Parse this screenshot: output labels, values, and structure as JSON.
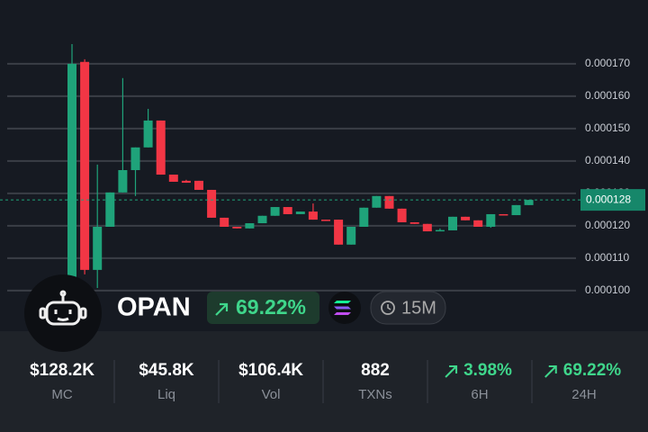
{
  "chart_data": {
    "type": "candlestick",
    "open": [
      0.0001022,
      0.0001706,
      0.0001064,
      0.0001197,
      0.0001303,
      0.0001372,
      0.0001442,
      0.0001525,
      0.0001358,
      0.0001339,
      0.0001339,
      0.0001311,
      0.0001225,
      0.0001197,
      0.0001192,
      0.0001208,
      0.0001231,
      0.0001258,
      0.0001236,
      0.0001244,
      0.0001219,
      0.0001219,
      0.0001142,
      0.0001197,
      0.0001256,
      0.0001292,
      0.0001253,
      0.0001211,
      0.0001206,
      0.0001186,
      0.0001186,
      0.0001228,
      0.0001217,
      0.0001197,
      0.0001236,
      0.0001233,
      0.0001264
    ],
    "high": [
      0.0001761,
      0.0001714,
      0.0001389,
      0.0001303,
      0.0001656,
      0.0001442,
      0.0001561,
      0.0001525,
      0.0001358,
      0.0001342,
      0.0001339,
      0.0001311,
      0.0001225,
      0.0001197,
      0.0001208,
      0.0001231,
      0.0001258,
      0.0001258,
      0.0001244,
      0.0001269,
      0.0001219,
      0.0001219,
      0.0001197,
      0.0001256,
      0.0001292,
      0.0001292,
      0.0001253,
      0.0001211,
      0.0001206,
      0.0001192,
      0.0001228,
      0.0001228,
      0.0001217,
      0.0001236,
      0.0001236,
      0.0001264,
      0.000128
    ],
    "low": [
      9.94e-05,
      0.000105,
      0.0001008,
      0.0001197,
      0.0001303,
      0.0001292,
      0.0001442,
      0.0001358,
      0.0001336,
      0.0001333,
      0.0001311,
      0.0001225,
      0.0001197,
      0.0001192,
      0.0001192,
      0.0001208,
      0.0001231,
      0.0001236,
      0.0001236,
      0.0001219,
      0.0001217,
      0.0001142,
      0.0001142,
      0.0001197,
      0.0001256,
      0.0001253,
      0.0001211,
      0.0001206,
      0.0001183,
      0.0001183,
      0.0001186,
      0.0001217,
      0.0001197,
      0.0001194,
      0.0001233,
      0.0001233,
      0.0001264
    ],
    "close": [
      0.00017,
      0.0001064,
      0.0001197,
      0.0001303,
      0.0001372,
      0.0001442,
      0.0001525,
      0.0001358,
      0.0001336,
      0.0001333,
      0.0001311,
      0.0001225,
      0.0001197,
      0.0001192,
      0.0001208,
      0.0001231,
      0.0001258,
      0.0001236,
      0.0001244,
      0.0001219,
      0.0001217,
      0.0001142,
      0.0001197,
      0.0001256,
      0.0001292,
      0.0001253,
      0.0001211,
      0.0001206,
      0.0001183,
      0.0001187,
      0.0001228,
      0.0001217,
      0.0001197,
      0.0001236,
      0.0001233,
      0.0001264,
      0.000128
    ],
    "ylim": [
      8.97e-05,
      0.0001897
    ],
    "yticks": [
      {
        "value": 0.00017,
        "label": "0.000170"
      },
      {
        "value": 0.00016,
        "label": "0.000160"
      },
      {
        "value": 0.00015,
        "label": "0.000150"
      },
      {
        "value": 0.00014,
        "label": "0.000140"
      },
      {
        "value": 0.00013,
        "label": "0.000130"
      },
      {
        "value": 0.00012,
        "label": "0.000120"
      },
      {
        "value": 0.00011,
        "label": "0.000110"
      },
      {
        "value": 0.0001,
        "label": "0.000100"
      }
    ],
    "grid": true,
    "up_color": "#1fa37a",
    "down_color": "#f23645",
    "last_price": 0.000128
  },
  "token": {
    "symbol": "OPAN",
    "change": "69.22%",
    "timeframe": "15M"
  },
  "stats": [
    {
      "value": "$128.2K",
      "label": "MC"
    },
    {
      "value": "$45.8K",
      "label": "Liq"
    },
    {
      "value": "$106.4K",
      "label": "Vol"
    },
    {
      "value": "882",
      "label": "TXNs"
    },
    {
      "value": "3.98%",
      "label": "6H",
      "trend": "up"
    },
    {
      "value": "69.22%",
      "label": "24H",
      "trend": "up"
    }
  ]
}
